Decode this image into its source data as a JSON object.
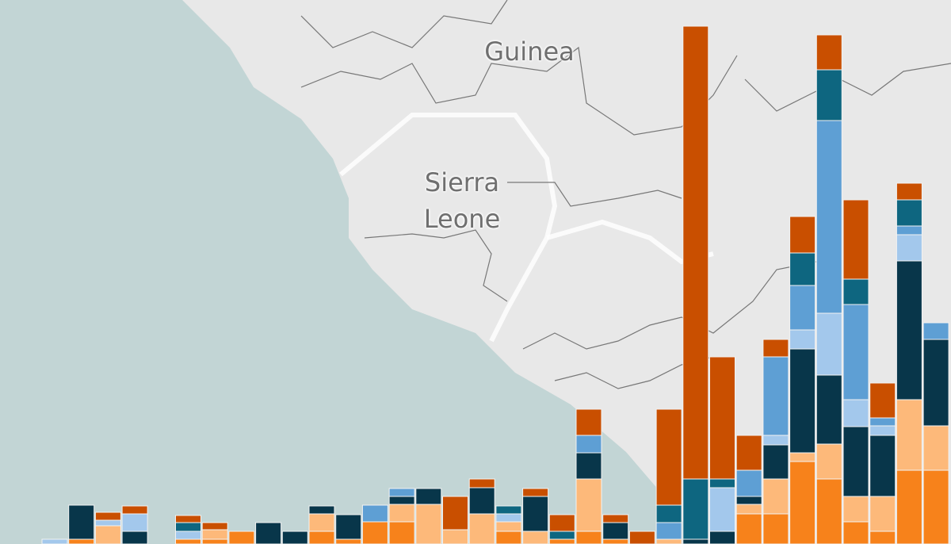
{
  "map": {
    "labels": [
      "Guinea",
      "Sierra Leone"
    ]
  },
  "chart_data": {
    "type": "stacked-bar",
    "categories": [
      null,
      null,
      null,
      null,
      null,
      null,
      null,
      null,
      null,
      null,
      null,
      null,
      null,
      null,
      null,
      null,
      null,
      null,
      null,
      null,
      null,
      null,
      null,
      null,
      null,
      null,
      null,
      null,
      null,
      null,
      null,
      null,
      null,
      null
    ],
    "ylim": [
      0,
      686
    ],
    "series": [
      {
        "color": "#f7821b",
        "values": [
          0,
          6,
          0,
          0,
          0,
          6,
          6,
          16,
          0,
          0,
          16,
          6,
          28,
          28,
          0,
          0,
          0,
          16,
          0,
          6,
          16,
          6,
          0,
          0,
          0,
          0,
          38,
          38,
          104,
          82,
          28,
          16,
          93,
          93
        ]
      },
      {
        "color": "#fdb97a",
        "values": [
          0,
          0,
          23,
          0,
          0,
          0,
          12,
          0,
          0,
          0,
          22,
          0,
          0,
          22,
          50,
          18,
          38,
          12,
          16,
          0,
          66,
          0,
          0,
          6,
          0,
          0,
          12,
          44,
          11,
          44,
          32,
          44,
          89,
          56
        ]
      },
      {
        "color": "#08364a",
        "values": [
          0,
          43,
          0,
          16,
          0,
          0,
          0,
          0,
          27,
          16,
          10,
          31,
          0,
          10,
          20,
          0,
          33,
          0,
          44,
          0,
          33,
          21,
          0,
          0,
          6,
          16,
          10,
          43,
          131,
          87,
          88,
          77,
          175,
          109
        ]
      },
      {
        "color": "#a3c8ec",
        "values": [
          6,
          0,
          7,
          22,
          0,
          10,
          0,
          0,
          0,
          0,
          0,
          0,
          0,
          0,
          0,
          0,
          0,
          10,
          0,
          0,
          0,
          0,
          0,
          0,
          0,
          55,
          0,
          12,
          24,
          78,
          34,
          12,
          33,
          0
        ]
      },
      {
        "color": "#5e9fd4",
        "values": [
          0,
          0,
          0,
          0,
          0,
          0,
          0,
          0,
          0,
          0,
          0,
          0,
          21,
          10,
          0,
          0,
          0,
          0,
          0,
          0,
          22,
          0,
          0,
          21,
          0,
          0,
          33,
          99,
          56,
          243,
          120,
          10,
          11,
          21
        ]
      },
      {
        "color": "#0e6680",
        "values": [
          0,
          0,
          0,
          0,
          0,
          11,
          0,
          0,
          0,
          0,
          0,
          0,
          0,
          0,
          0,
          0,
          0,
          10,
          0,
          10,
          0,
          0,
          0,
          22,
          76,
          11,
          0,
          0,
          41,
          64,
          32,
          0,
          33,
          0
        ]
      },
      {
        "color": "#c94f00",
        "values": [
          0,
          0,
          10,
          10,
          0,
          9,
          9,
          0,
          0,
          0,
          0,
          0,
          0,
          0,
          0,
          42,
          11,
          0,
          10,
          21,
          33,
          10,
          16,
          121,
          571,
          154,
          44,
          22,
          46,
          44,
          100,
          44,
          21,
          0
        ]
      }
    ]
  }
}
